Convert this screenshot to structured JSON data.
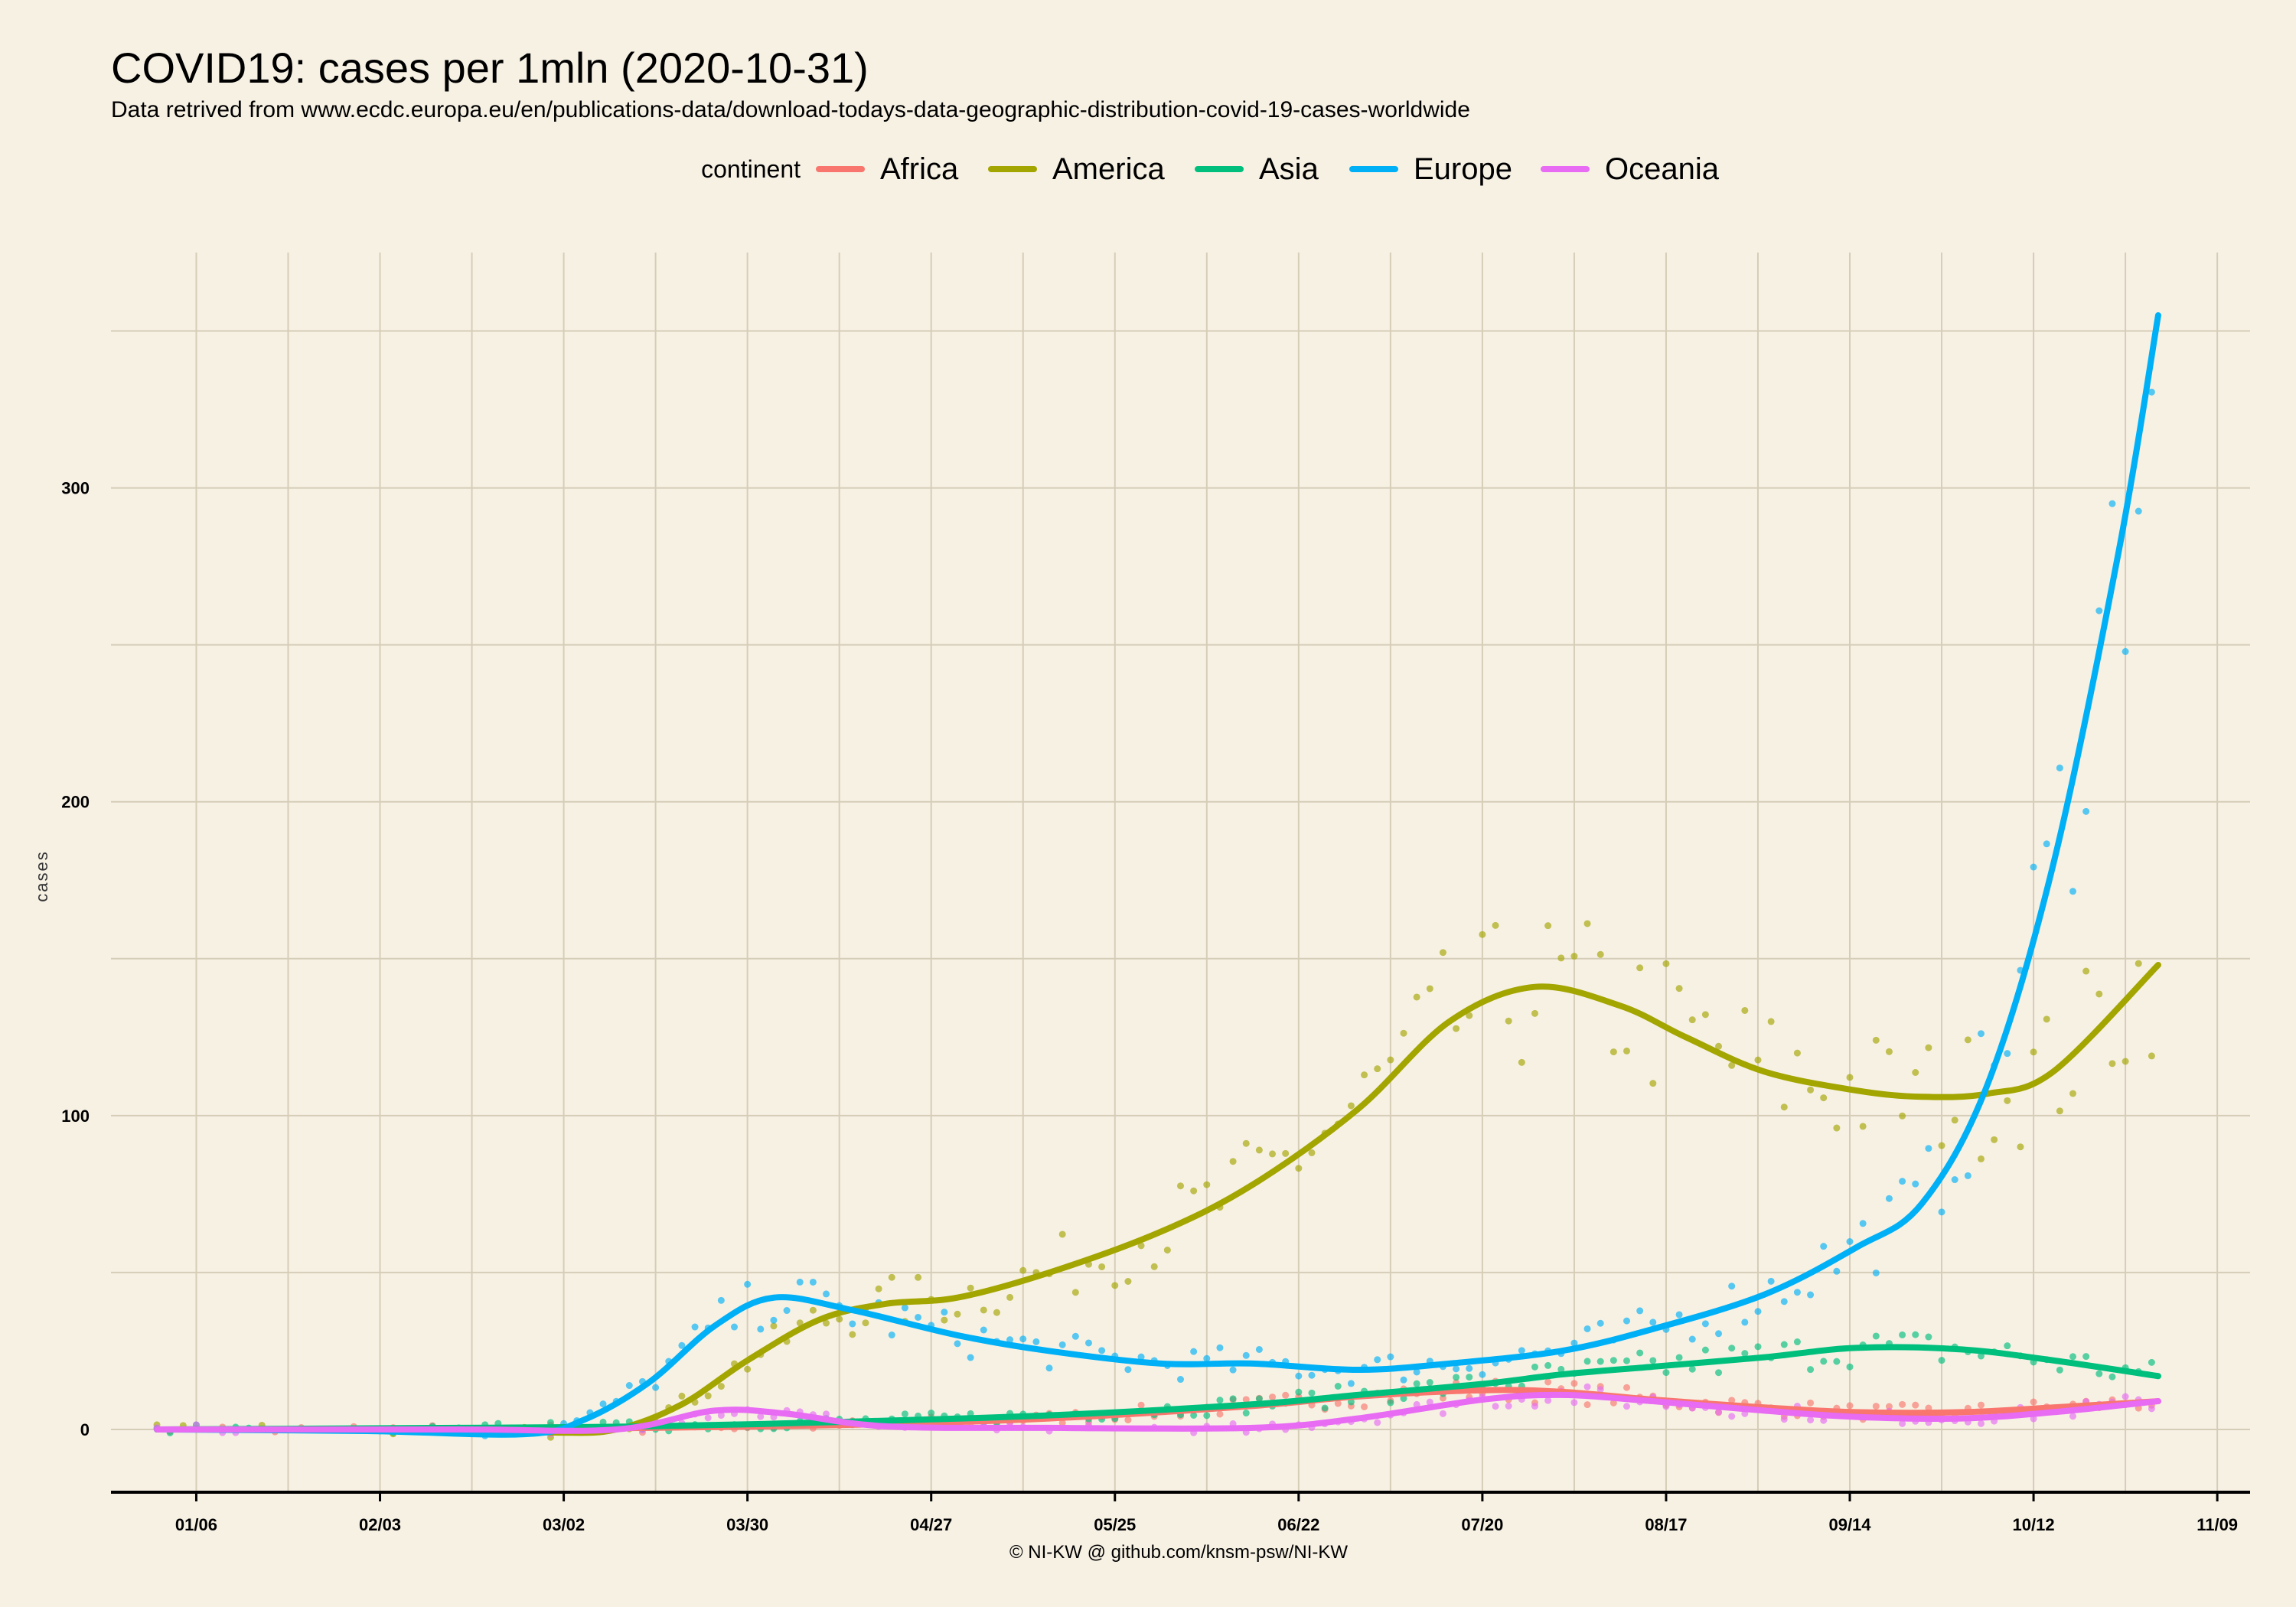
{
  "chart_data": {
    "type": "line",
    "title": "COVID19: cases per 1mln (2020-10-31)",
    "subtitle": "Data retrived from www.ecdc.europa.eu/en/publications-data/download-todays-data-geographic-distribution-covid-19-cases-worldwide",
    "caption": "© NI-KW @ github.com/knsm-psw/NI-KW",
    "ylabel": "cases",
    "xlabel": "",
    "legend_title": "continent",
    "legend_position": "top",
    "grid": true,
    "xlim": [
      "2019-12-24",
      "2020-11-14"
    ],
    "ylim": [
      -20,
      375
    ],
    "x_ticks": [
      "2020-01-06",
      "2020-02-03",
      "2020-03-02",
      "2020-03-30",
      "2020-04-27",
      "2020-05-25",
      "2020-06-22",
      "2020-07-20",
      "2020-08-17",
      "2020-09-14",
      "2020-10-12",
      "2020-11-09"
    ],
    "x_tick_labels": [
      "01/06",
      "02/03",
      "03/02",
      "03/30",
      "04/27",
      "05/25",
      "06/22",
      "07/20",
      "08/17",
      "09/14",
      "10/12",
      "11/09"
    ],
    "y_ticks": [
      0,
      100,
      200,
      300
    ],
    "y_tick_labels": [
      "0",
      "100",
      "200",
      "300"
    ],
    "series": [
      {
        "name": "Africa",
        "color": "#f8766d",
        "x": [
          "2019-12-31",
          "2020-02-15",
          "2020-03-15",
          "2020-04-15",
          "2020-05-15",
          "2020-06-15",
          "2020-07-01",
          "2020-07-20",
          "2020-08-01",
          "2020-08-15",
          "2020-09-01",
          "2020-09-15",
          "2020-10-01",
          "2020-10-15",
          "2020-10-31"
        ],
        "y": [
          0,
          0,
          0.5,
          1.5,
          3.5,
          7.5,
          10.5,
          12.5,
          12.0,
          9.5,
          7.0,
          5.5,
          5.5,
          7.0,
          9.0
        ]
      },
      {
        "name": "America",
        "color": "#a3a500",
        "x": [
          "2019-12-31",
          "2020-02-15",
          "2020-03-01",
          "2020-03-10",
          "2020-03-20",
          "2020-03-30",
          "2020-04-10",
          "2020-04-20",
          "2020-05-01",
          "2020-05-15",
          "2020-06-01",
          "2020-06-15",
          "2020-07-01",
          "2020-07-15",
          "2020-07-28",
          "2020-08-10",
          "2020-08-20",
          "2020-09-01",
          "2020-09-15",
          "2020-09-25",
          "2020-10-05",
          "2020-10-15",
          "2020-10-31"
        ],
        "y": [
          0,
          0,
          -1,
          0,
          8,
          22,
          35,
          40,
          42,
          50,
          63,
          78,
          102,
          130,
          141,
          135,
          125,
          114,
          108,
          106,
          107,
          114,
          148
        ]
      },
      {
        "name": "Asia",
        "color": "#00bf7d",
        "x": [
          "2019-12-31",
          "2020-02-15",
          "2020-03-15",
          "2020-04-15",
          "2020-05-15",
          "2020-06-15",
          "2020-07-01",
          "2020-07-20",
          "2020-08-01",
          "2020-08-15",
          "2020-09-01",
          "2020-09-15",
          "2020-10-01",
          "2020-10-15",
          "2020-10-31"
        ],
        "y": [
          0,
          0.5,
          1,
          2.5,
          4.5,
          8,
          11,
          14.5,
          17.5,
          20,
          23,
          26,
          25.5,
          22,
          17
        ]
      },
      {
        "name": "Europe",
        "color": "#00b0f6",
        "x": [
          "2019-12-31",
          "2020-02-01",
          "2020-02-25",
          "2020-03-05",
          "2020-03-15",
          "2020-03-25",
          "2020-04-03",
          "2020-04-15",
          "2020-05-01",
          "2020-05-15",
          "2020-06-01",
          "2020-06-15",
          "2020-07-01",
          "2020-07-15",
          "2020-08-01",
          "2020-08-15",
          "2020-09-01",
          "2020-09-15",
          "2020-09-25",
          "2020-10-05",
          "2020-10-15",
          "2020-10-25",
          "2020-10-31"
        ],
        "y": [
          0,
          -0.5,
          -1.5,
          3,
          15,
          33,
          42,
          38,
          30,
          25,
          21,
          21,
          19,
          21,
          25,
          32,
          43,
          58,
          72,
          110,
          180,
          280,
          355
        ]
      },
      {
        "name": "Oceania",
        "color": "#e76bf3",
        "x": [
          "2019-12-31",
          "2020-02-15",
          "2020-03-10",
          "2020-03-25",
          "2020-04-05",
          "2020-04-20",
          "2020-05-15",
          "2020-06-15",
          "2020-07-01",
          "2020-07-20",
          "2020-08-01",
          "2020-08-15",
          "2020-09-01",
          "2020-09-15",
          "2020-10-01",
          "2020-10-15",
          "2020-10-31"
        ],
        "y": [
          0,
          0,
          0,
          6,
          5,
          1,
          0.5,
          0.5,
          3.5,
          9.5,
          11,
          9,
          6,
          4,
          3.5,
          5.5,
          9
        ]
      }
    ]
  }
}
